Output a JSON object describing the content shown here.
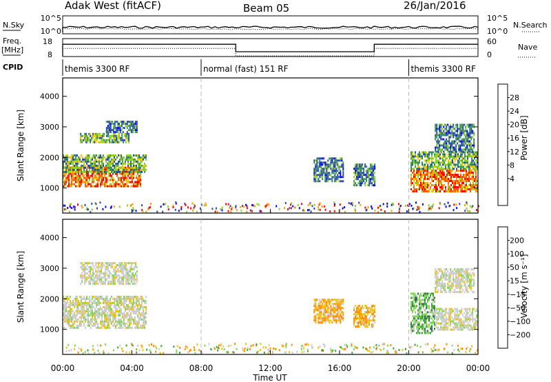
{
  "header": {
    "station": "Adak West (fitACF)",
    "beam": "Beam 05",
    "date": "26/Jan/2016"
  },
  "top_panels": {
    "nsky_label": "N.Sky",
    "nsky_ticks": [
      "10^5",
      "10^0"
    ],
    "nsearch_label": "N.Search",
    "nsearch_ticks": [
      "10^5",
      "10^0"
    ],
    "freq_label": "Freq.",
    "freq_unit": "[MHz]",
    "freq_ticks": [
      "18",
      "8"
    ],
    "nave_label": "Nave",
    "nave_ticks": [
      "60",
      "0"
    ],
    "cpid_label": "CPID",
    "cpid_segments": [
      {
        "label": "themis 3300 RF",
        "start": 0,
        "end": 8
      },
      {
        "label": "normal (fast) 151 RF",
        "start": 8,
        "end": 20
      },
      {
        "label": "themis 3300 RF",
        "start": 20,
        "end": 24
      }
    ],
    "freq_steps": [
      {
        "start": 0,
        "end": 10,
        "freq": 15
      },
      {
        "start": 10,
        "end": 18,
        "freq": 10.5
      },
      {
        "start": 18,
        "end": 24,
        "freq": 15
      }
    ]
  },
  "axes": {
    "ylabel": "Slant Range [km]",
    "yticks": [
      "4000",
      "3000",
      "2000",
      "1000"
    ],
    "xlabel": "Time UT",
    "xticks": [
      "00:00",
      "04:00",
      "08:00",
      "12:00",
      "16:00",
      "20:00",
      "00:00"
    ]
  },
  "colorbars": {
    "power": {
      "label": "Power [dB]",
      "ticks": [
        "28",
        "24",
        "20",
        "16",
        "12",
        "8",
        "4"
      ],
      "colors": [
        "#ff0000",
        "#ff5a00",
        "#ff9a00",
        "#f0c800",
        "#8fcf1f",
        "#3f9f3f",
        "#2f7f7f",
        "#2a4aa8",
        "#0000ff"
      ]
    },
    "velocity": {
      "label": "Velocity [m s⁻¹]",
      "ticks": [
        "200",
        "100",
        "50",
        "15",
        "−15",
        "−50",
        "−100",
        "−200"
      ],
      "colors": [
        "#1e3aa8",
        "#2f6f4f",
        "#3fa13f",
        "#7fd84f",
        "#cccccc",
        "#f2c200",
        "#ff8a00",
        "#ff4a00",
        "#ff0000"
      ]
    }
  },
  "chart_data": {
    "type": "heatmap",
    "title": "Adak West (fitACF) Beam 05 26/Jan/2016",
    "xlabel": "Time UT",
    "ylabel": "Slant Range [km]",
    "xlim_hours": [
      0,
      24
    ],
    "ylim_km": [
      180,
      4600
    ],
    "gray_line_hours": [
      8,
      20
    ],
    "power_regions": [
      {
        "t0": 0.0,
        "t1": 4.5,
        "r0": 1050,
        "r1": 1700,
        "level": "high"
      },
      {
        "t0": 0.0,
        "t1": 4.8,
        "r0": 1500,
        "r1": 2100,
        "level": "mid"
      },
      {
        "t0": 1.0,
        "t1": 3.8,
        "r0": 2500,
        "r1": 2800,
        "level": "mid"
      },
      {
        "t0": 2.5,
        "t1": 4.3,
        "r0": 2800,
        "r1": 3200,
        "level": "low"
      },
      {
        "t0": 14.5,
        "t1": 16.2,
        "r0": 1200,
        "r1": 2000,
        "level": "low"
      },
      {
        "t0": 16.8,
        "t1": 18.0,
        "r0": 1100,
        "r1": 1800,
        "level": "low"
      },
      {
        "t0": 20.1,
        "t1": 24.0,
        "r0": 900,
        "r1": 1600,
        "level": "high"
      },
      {
        "t0": 20.1,
        "t1": 24.0,
        "r0": 1600,
        "r1": 2200,
        "level": "mid"
      },
      {
        "t0": 21.5,
        "t1": 23.8,
        "r0": 2200,
        "r1": 3100,
        "level": "low"
      }
    ],
    "velocity_regions": [
      {
        "t0": 0.0,
        "t1": 4.8,
        "r0": 1050,
        "r1": 2100,
        "band": "15"
      },
      {
        "t0": 1.0,
        "t1": 4.3,
        "r0": 2500,
        "r1": 3200,
        "band": "15"
      },
      {
        "t0": 14.5,
        "t1": 16.2,
        "r0": 1200,
        "r1": 2000,
        "band": "-50"
      },
      {
        "t0": 16.8,
        "t1": 18.0,
        "r0": 1100,
        "r1": 1800,
        "band": "-50"
      },
      {
        "t0": 20.1,
        "t1": 21.5,
        "r0": 900,
        "r1": 2200,
        "band": "50"
      },
      {
        "t0": 21.5,
        "t1": 24.0,
        "r0": 1000,
        "r1": 1700,
        "band": "15"
      },
      {
        "t0": 21.5,
        "t1": 23.8,
        "r0": 2200,
        "r1": 3000,
        "band": "15"
      }
    ]
  }
}
